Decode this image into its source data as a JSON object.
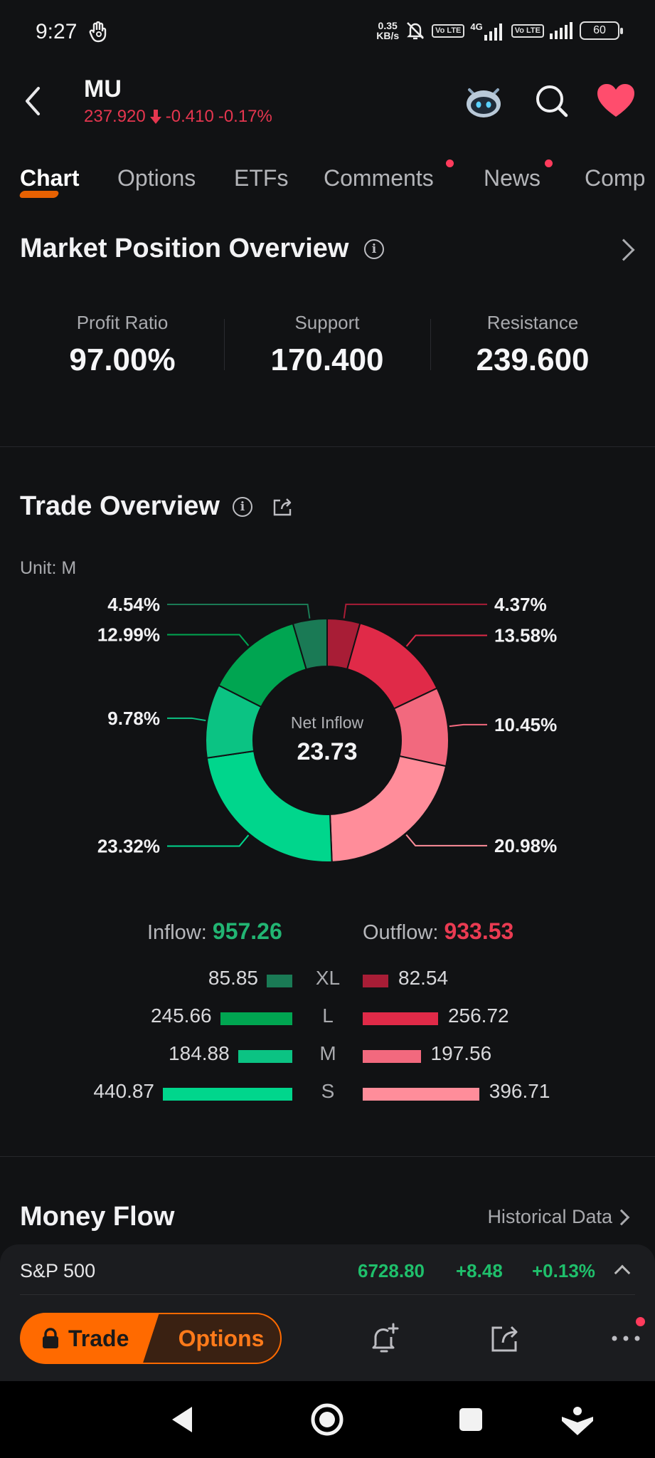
{
  "status": {
    "time": "9:27",
    "net_speed_value": "0.35",
    "net_speed_unit": "KB/s",
    "sim_badge_1": "Vo LTE",
    "network": "4G",
    "sim_badge_2": "Vo LTE",
    "battery": "60"
  },
  "header": {
    "ticker": "MU",
    "price": "237.920",
    "change": "-0.410",
    "change_pct": "-0.17%",
    "icons": [
      "robot-assistant-icon",
      "search-icon",
      "heart-icon"
    ]
  },
  "tabs": [
    {
      "label": "Chart",
      "active": true
    },
    {
      "label": "Options",
      "active": false
    },
    {
      "label": "ETFs",
      "active": false
    },
    {
      "label": "Comments",
      "active": false,
      "dot": true
    },
    {
      "label": "News",
      "active": false,
      "dot": true
    },
    {
      "label": "Comp",
      "active": false
    }
  ],
  "market_position": {
    "title": "Market Position Overview",
    "stats": [
      {
        "label": "Profit Ratio",
        "value": "97.00%"
      },
      {
        "label": "Support",
        "value": "170.400"
      },
      {
        "label": "Resistance",
        "value": "239.600"
      }
    ]
  },
  "trade_overview": {
    "title": "Trade Overview",
    "unit": "Unit: M",
    "center_label": "Net Inflow",
    "center_value": "23.73",
    "inflow_label": "Inflow:",
    "inflow_value": "957.26",
    "outflow_label": "Outflow:",
    "outflow_value": "933.53",
    "colors": {
      "inflow_xl": "#1a7a55",
      "inflow_l": "#00a551",
      "inflow_m": "#0bc383",
      "inflow_s": "#00d68c",
      "outflow_xl": "#a81d36",
      "outflow_l": "#e02a48",
      "outflow_m": "#f2697e",
      "outflow_s": "#ff8d9a"
    },
    "rows": [
      {
        "size": "XL",
        "inflow": "85.85",
        "outflow": "82.54"
      },
      {
        "size": "L",
        "inflow": "245.66",
        "outflow": "256.72"
      },
      {
        "size": "M",
        "inflow": "184.88",
        "outflow": "197.56"
      },
      {
        "size": "S",
        "inflow": "440.87",
        "outflow": "396.71"
      }
    ]
  },
  "chart_data": {
    "type": "pie",
    "center_label": "Net Inflow",
    "center_value": 23.73,
    "slices": [
      {
        "name": "Outflow XL",
        "percent": 4.37,
        "value": 82.54,
        "color": "#a81d36"
      },
      {
        "name": "Outflow L",
        "percent": 13.58,
        "value": 256.72,
        "color": "#e02a48"
      },
      {
        "name": "Outflow M",
        "percent": 10.45,
        "value": 197.56,
        "color": "#f2697e"
      },
      {
        "name": "Outflow S",
        "percent": 20.98,
        "value": 396.71,
        "color": "#ff8d9a"
      },
      {
        "name": "Inflow S",
        "percent": 23.32,
        "value": 440.87,
        "color": "#00d68c"
      },
      {
        "name": "Inflow M",
        "percent": 9.78,
        "value": 184.88,
        "color": "#0bc383"
      },
      {
        "name": "Inflow L",
        "percent": 12.99,
        "value": 245.66,
        "color": "#00a551"
      },
      {
        "name": "Inflow XL",
        "percent": 4.54,
        "value": 85.85,
        "color": "#1a7a55"
      }
    ],
    "slice_labels": [
      "4.37%",
      "13.58%",
      "10.45%",
      "20.98%",
      "23.32%",
      "9.78%",
      "12.99%",
      "4.54%"
    ]
  },
  "money_flow": {
    "title": "Money Flow",
    "link": "Historical Data"
  },
  "index_bar": {
    "name": "S&P 500",
    "value": "6728.80",
    "change": "+8.48",
    "change_pct": "+0.13%"
  },
  "actions": {
    "trade_label": "Trade",
    "options_label": "Options"
  }
}
